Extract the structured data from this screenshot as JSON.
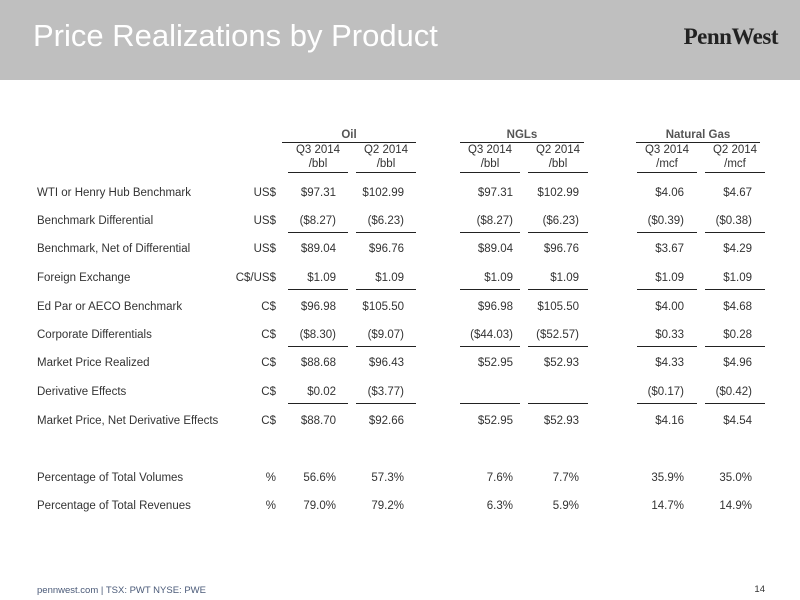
{
  "header": {
    "title": "Price Realizations by Product",
    "logo": "PennWest"
  },
  "table": {
    "groups": [
      {
        "name": "Oil",
        "columns": [
          {
            "period": "Q3 2014",
            "unit": "/bbl"
          },
          {
            "period": "Q2 2014",
            "unit": "/bbl"
          }
        ]
      },
      {
        "name": "NGLs",
        "columns": [
          {
            "period": "Q3 2014",
            "unit": "/bbl"
          },
          {
            "period": "Q2 2014",
            "unit": "/bbl"
          }
        ]
      },
      {
        "name": "Natural Gas",
        "columns": [
          {
            "period": "Q3 2014",
            "unit": "/mcf"
          },
          {
            "period": "Q2 2014",
            "unit": "/mcf"
          }
        ]
      }
    ],
    "rows": [
      {
        "label": "WTI or Henry Hub Benchmark",
        "unit": "US$",
        "values": [
          "$97.31",
          "$102.99",
          "$97.31",
          "$102.99",
          "$4.06",
          "$4.67"
        ]
      },
      {
        "label": "Benchmark Differential",
        "unit": "US$",
        "values": [
          "($8.27)",
          "($6.23)",
          "($8.27)",
          "($6.23)",
          "($0.39)",
          "($0.38)"
        ]
      },
      {
        "label": "Benchmark, Net of Differential",
        "unit": "US$",
        "values": [
          "$89.04",
          "$96.76",
          "$89.04",
          "$96.76",
          "$3.67",
          "$4.29"
        ]
      },
      {
        "label": "Foreign Exchange",
        "unit": "C$/US$",
        "values": [
          "$1.09",
          "$1.09",
          "$1.09",
          "$1.09",
          "$1.09",
          "$1.09"
        ]
      },
      {
        "label": "Ed Par or AECO Benchmark",
        "unit": "C$",
        "values": [
          "$96.98",
          "$105.50",
          "$96.98",
          "$105.50",
          "$4.00",
          "$4.68"
        ]
      },
      {
        "label": "Corporate Differentials",
        "unit": "C$",
        "values": [
          "($8.30)",
          "($9.07)",
          "($44.03)",
          "($52.57)",
          "$0.33",
          "$0.28"
        ]
      },
      {
        "label": "Market Price Realized",
        "unit": "C$",
        "values": [
          "$88.68",
          "$96.43",
          "$52.95",
          "$52.93",
          "$4.33",
          "$4.96"
        ]
      },
      {
        "label": "Derivative Effects",
        "unit": "C$",
        "values": [
          "$0.02",
          "($3.77)",
          null,
          null,
          "($0.17)",
          "($0.42)"
        ]
      },
      {
        "label": "Market Price, Net Derivative Effects",
        "unit": "C$",
        "values": [
          "$88.70",
          "$92.66",
          "$52.95",
          "$52.93",
          "$4.16",
          "$4.54"
        ]
      },
      {
        "label": "Percentage of Total Volumes",
        "unit": "%",
        "values": [
          "56.6%",
          "57.3%",
          "7.6%",
          "7.7%",
          "35.9%",
          "35.0%"
        ]
      },
      {
        "label": "Percentage of Total Revenues",
        "unit": "%",
        "values": [
          "79.0%",
          "79.2%",
          "6.3%",
          "5.9%",
          "14.7%",
          "14.9%"
        ]
      }
    ]
  },
  "footer": {
    "site": "pennwest.com",
    "tickers": "TSX: PWT  NYSE: PWE",
    "page": "14"
  }
}
